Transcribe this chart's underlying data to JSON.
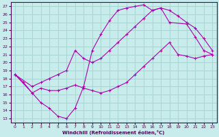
{
  "bg_color": "#c8ecec",
  "grid_color": "#a8d4d4",
  "line_color": "#aa00aa",
  "xlabel": "Windchill (Refroidissement éolien,°C)",
  "xlim": [
    -0.5,
    23.5
  ],
  "ylim": [
    12.5,
    27.5
  ],
  "xticks": [
    0,
    1,
    2,
    3,
    4,
    5,
    6,
    7,
    8,
    9,
    10,
    11,
    12,
    13,
    14,
    15,
    16,
    17,
    18,
    19,
    20,
    21,
    22,
    23
  ],
  "yticks": [
    13,
    14,
    15,
    16,
    17,
    18,
    19,
    20,
    21,
    22,
    23,
    24,
    25,
    26,
    27
  ],
  "s1_x": [
    0,
    1,
    2,
    3,
    4,
    5,
    6,
    7,
    8,
    9,
    10,
    11,
    12,
    13,
    14,
    15,
    16,
    17,
    18,
    20,
    21,
    22,
    23
  ],
  "s1_y": [
    18.5,
    17.5,
    16.2,
    15.0,
    14.3,
    13.3,
    13.0,
    14.3,
    17.0,
    21.5,
    23.5,
    25.2,
    26.5,
    26.8,
    27.0,
    27.2,
    26.5,
    26.8,
    25.0,
    24.8,
    23.2,
    21.5,
    21.0
  ],
  "s2_x": [
    0,
    2,
    3,
    4,
    5,
    6,
    7,
    8,
    9,
    10,
    11,
    12,
    13,
    14,
    15,
    16,
    17,
    18,
    19,
    20,
    21,
    22,
    23
  ],
  "s2_y": [
    18.5,
    17.0,
    17.5,
    18.0,
    18.5,
    19.0,
    21.5,
    20.5,
    20.0,
    20.5,
    21.5,
    22.5,
    23.5,
    24.5,
    25.5,
    26.5,
    26.8,
    26.5,
    25.8,
    25.0,
    24.3,
    23.0,
    21.5
  ],
  "s3_x": [
    0,
    2,
    3,
    4,
    5,
    6,
    7,
    8,
    9,
    10,
    11,
    12,
    13,
    14,
    15,
    16,
    17,
    18,
    19,
    20,
    21,
    22,
    23
  ],
  "s3_y": [
    18.5,
    16.2,
    16.8,
    16.5,
    16.5,
    16.8,
    17.2,
    16.8,
    16.5,
    16.2,
    16.5,
    17.0,
    17.5,
    18.5,
    19.5,
    20.5,
    21.5,
    22.5,
    21.0,
    20.8,
    20.5,
    20.8,
    21.0
  ]
}
